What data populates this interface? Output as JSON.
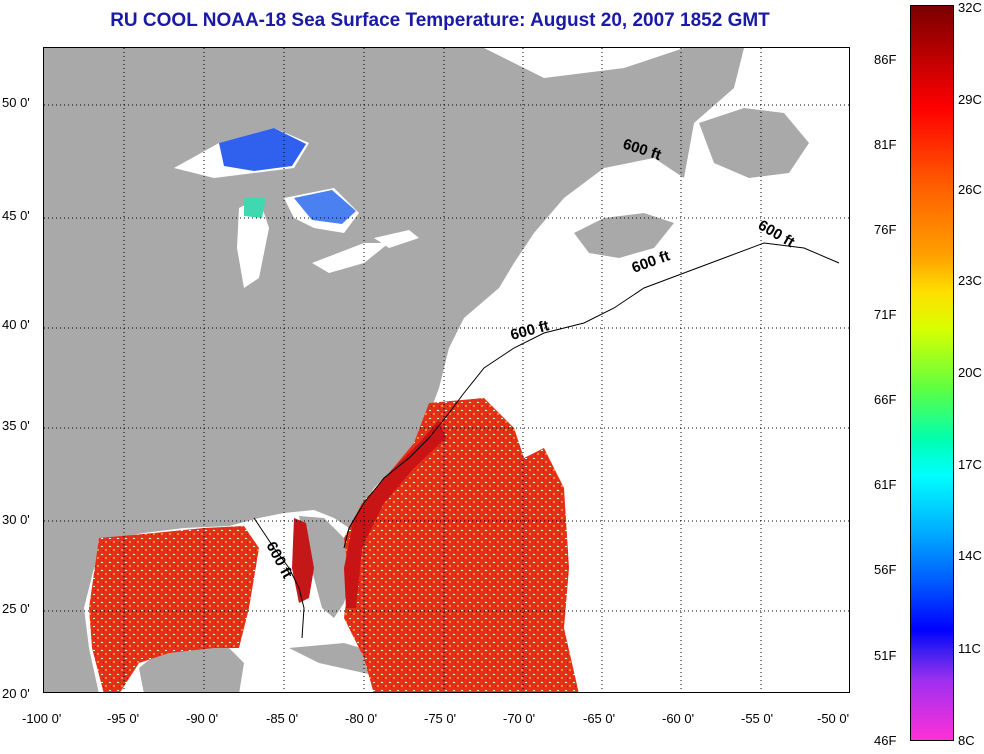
{
  "title": "RU COOL  NOAA-18  Sea Surface Temperature:  August 20, 2007 1852 GMT",
  "latitude_labels": [
    "50 0'",
    "45 0'",
    "40 0'",
    "35 0'",
    "30 0'",
    "25 0'",
    "20 0'"
  ],
  "longitude_labels": [
    "-100 0'",
    "-95 0'",
    "-90 0'",
    "-85 0'",
    "-80 0'",
    "-75 0'",
    "-70 0'",
    "-65 0'",
    "-60 0'",
    "-55 0'",
    "-50 0'"
  ],
  "isobath_labels": [
    "600 ft",
    "600 ft",
    "600 ft",
    "600 ft",
    "600 ft"
  ],
  "colorbar": {
    "fahrenheit_labels": [
      "86F",
      "81F",
      "76F",
      "71F",
      "66F",
      "61F",
      "56F",
      "51F",
      "46F"
    ],
    "celsius_labels": [
      "32C",
      "29C",
      "26C",
      "23C",
      "20C",
      "17C",
      "14C",
      "11C",
      "8C"
    ]
  },
  "colors": {
    "land": "#a9a9a9",
    "ocean_no_data": "#ffffff",
    "title_text": "#1a1aa6",
    "warm_sst": "#e8281a",
    "cool_sst": "#2a6cf0"
  }
}
